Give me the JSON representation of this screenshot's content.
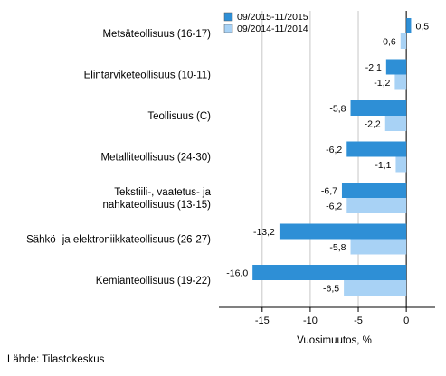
{
  "chart_data": {
    "type": "bar",
    "orientation": "horizontal",
    "categories": [
      "Metsäteollisuus (16-17)",
      "Elintarviketeollisuus (10-11)",
      "Teollisuus (C)",
      "Metalliteollisuus (24-30)",
      "Tekstiili-, vaatetus- ja nahkateollisuus (13-15)",
      "Sähkö- ja elektroniikkateollisuus (26-27)",
      "Kemianteollisuus (19-22)"
    ],
    "category_lines": [
      [
        "Metsäteollisuus (16-17)"
      ],
      [
        "Elintarviketeollisuus (10-11)"
      ],
      [
        "Teollisuus (C)"
      ],
      [
        "Metalliteollisuus (24-30)"
      ],
      [
        "Tekstiili-, vaatetus- ja",
        "nahkateollisuus (13-15)"
      ],
      [
        "Sähkö- ja elektroniikkateollisuus (26-27)"
      ],
      [
        "Kemianteollisuus (19-22)"
      ]
    ],
    "series": [
      {
        "name": "09/2015-11/2015",
        "color": "#2e8fd6",
        "values": [
          0.5,
          -2.1,
          -5.8,
          -6.2,
          -6.7,
          -13.2,
          -16.0
        ],
        "labels": [
          "0,5",
          "-2,1",
          "-5,8",
          "-6,2",
          "-6,7",
          "-13,2",
          "-16,0"
        ]
      },
      {
        "name": "09/2014-11/2014",
        "color": "#a8d2f5",
        "values": [
          -0.6,
          -1.2,
          -2.2,
          -1.1,
          -6.2,
          -5.8,
          -6.5
        ],
        "labels": [
          "-0,6",
          "-1,2",
          "-2,2",
          "-1,1",
          "-6,2",
          "-5,8",
          "-6,5"
        ]
      }
    ],
    "xlim": [
      -19.5,
      3
    ],
    "xticks": [
      -15,
      -10,
      -5,
      0
    ],
    "xtick_labels": [
      "-15",
      "-10",
      "-5",
      "0"
    ],
    "xlabel": "Vuosimuutos, %",
    "ylabel": "",
    "title": "",
    "grid": "vertical",
    "legend_position": "top-right"
  },
  "source": "Lähde: Tilastokeskus"
}
